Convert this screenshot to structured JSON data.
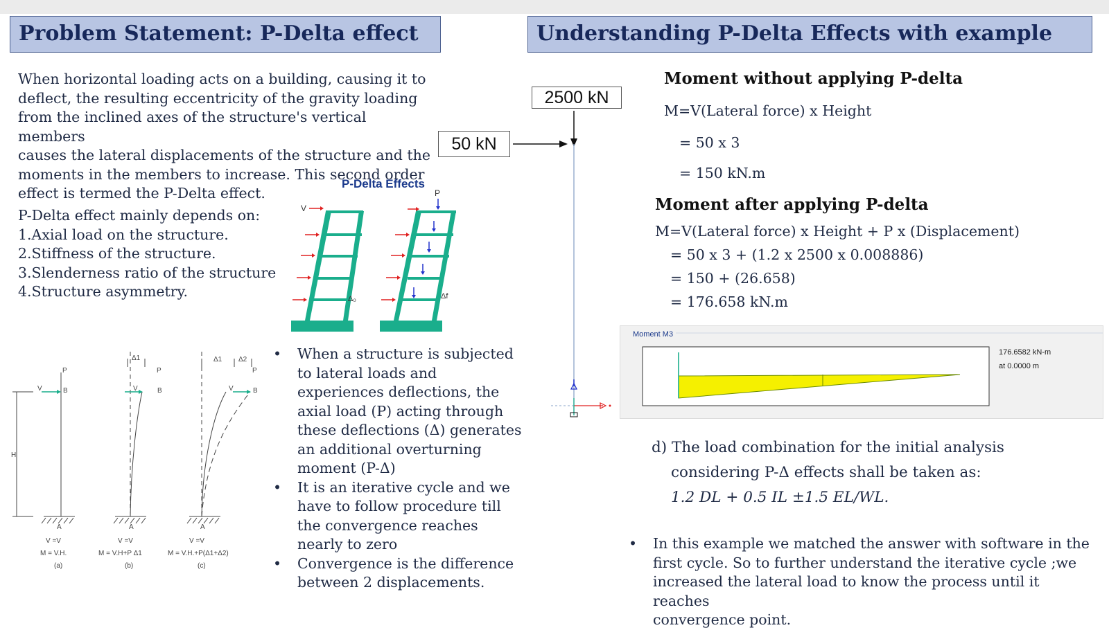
{
  "left": {
    "title": "Problem Statement: P-Delta effect",
    "intro_lines": [
      "When horizontal loading acts on a building, causing it to",
      "deflect, the resulting eccentricity of the gravity loading",
      "from the inclined axes of the structure's vertical members",
      "causes the lateral displacements of the structure and the",
      "moments in the members to increase. This second order",
      "effect is termed the P-Delta effect."
    ],
    "depends_heading": "P-Delta effect mainly depends on:",
    "depends_items": [
      "1.Axial load on the structure.",
      "2.Stiffness of the structure.",
      "3.Slenderness ratio of the structure",
      "4.Structure asymmetry."
    ],
    "figure": {
      "title": "P-Delta Effects",
      "v_label": "V",
      "p_label": "P",
      "delta0_label": "Δ₀",
      "deltaf_label": "Δf"
    },
    "bullets": [
      [
        "When a structure is subjected",
        "to lateral loads and",
        "experiences deflections, the",
        "axial load (P) acting through",
        "these deflections (Δ) generates",
        "an additional overturning",
        "moment (P-Δ)"
      ],
      [
        "It is an iterative cycle and we",
        "have to follow procedure till",
        "the convergence reaches",
        "nearly to zero"
      ],
      [
        "Convergence is the difference",
        "between 2 displacements."
      ]
    ],
    "bullet_symbol": "•",
    "cantilever": {
      "h_label": "H",
      "p_label": "P",
      "v_label": "V",
      "b_label": "B",
      "a_label": "A",
      "delta1_label": "Δ1",
      "delta2_label": "Δ2",
      "cases": [
        {
          "line1": "V  =V",
          "line2": "M  = V.H.",
          "tag": "(a)"
        },
        {
          "line1": "V  =V",
          "line2": "M  = V.H+P Δ1",
          "tag": "(b)"
        },
        {
          "line1": "V  =V",
          "line2": "M  = V.H.+P(Δ1+Δ2)",
          "tag": "(c)"
        }
      ]
    }
  },
  "right": {
    "title": "Understanding P-Delta Effects with example",
    "load_vertical": "2500 kN",
    "load_lateral": "50 kN",
    "without_heading": "Moment without applying P-delta",
    "without_lines": [
      "M=V(Lateral force) x Height",
      "= 50 x 3",
      "= 150 kN.m"
    ],
    "after_heading": "Moment after applying P-delta",
    "after_lines": [
      "M=V(Lateral force) x Height + P x (Displacement)",
      "= 50 x 3 + (1.2 x 2500 x 0.008886)",
      "= 150 + (26.658)",
      "= 176.658 kN.m"
    ],
    "moment_panel": {
      "title": "Moment M3",
      "value": "176.6582 kN-m",
      "location": "at 0.0000 m"
    },
    "load_combo_lines": [
      "d) The load combination for the initial analysis",
      "considering  P-Δ  effects  shall  be  taken  as:",
      "1.2 DL + 0.5 IL ±1.5 EL/WL."
    ],
    "bottom_bullet": [
      "In this example we matched the answer with software in the",
      "first cycle. So to further understand the iterative cycle ;we",
      "increased the lateral load to know the process until it reaches",
      "convergence point."
    ],
    "bullet_symbol": "•"
  },
  "colors": {
    "title_bg": "#b8c5e3",
    "title_text": "#17285a",
    "frame_green": "#1aae8c",
    "load_arrow_red": "#e02020",
    "load_arrow_blue": "#2233cc",
    "moment_fill": "#f5f000"
  }
}
